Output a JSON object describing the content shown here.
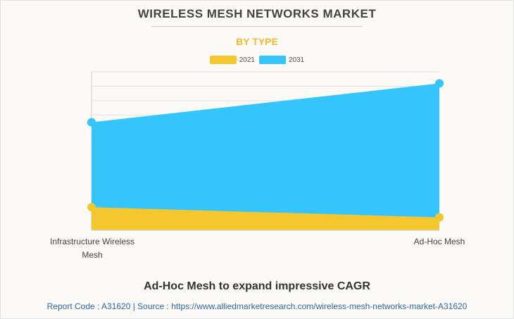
{
  "header": {
    "title": "WIRELESS MESH NETWORKS MARKET",
    "subtitle": "BY TYPE"
  },
  "legend": [
    {
      "label": "2021",
      "color": "#f5c72f"
    },
    {
      "label": "2031",
      "color": "#33c5fc"
    }
  ],
  "chart_data": {
    "type": "area",
    "categories": [
      "Infrastructure Wireless Mesh",
      "Ad-Hoc Mesh"
    ],
    "series": [
      {
        "name": "2031",
        "values": [
          7.5,
          10.2
        ],
        "color": "#33c5fc"
      },
      {
        "name": "2021",
        "values": [
          1.6,
          0.9
        ],
        "color": "#f5c72f"
      }
    ],
    "ylim": [
      0,
      11
    ],
    "grid": true,
    "legend_position": "top-center",
    "xlabel": "",
    "ylabel": ""
  },
  "caption": "Ad-Hoc Mesh to expand impressive CAGR",
  "footer": "Report Code : A31620  |  Source : https://www.alliedmarketresearch.com/wireless-mesh-networks-market-A31620"
}
